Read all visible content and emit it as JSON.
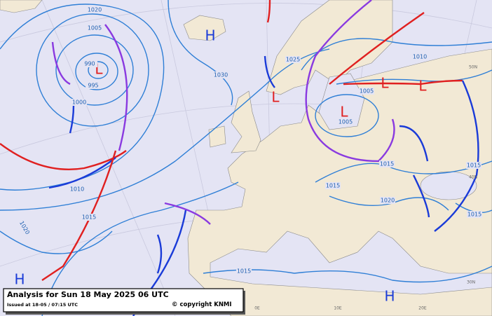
{
  "caption": {
    "title": "Analysis for Sun 18 May 2025 06 UTC",
    "issued": "Issued at 18-05 / 07:15 UTC",
    "copyright": "© copyright KNMI"
  },
  "pressure_centers": [
    {
      "label": "H",
      "kind": "high"
    },
    {
      "label": "L",
      "kind": "low"
    },
    {
      "label": "L",
      "kind": "low"
    },
    {
      "label": "L",
      "kind": "low"
    },
    {
      "label": "L",
      "kind": "low"
    },
    {
      "label": "L",
      "kind": "low"
    },
    {
      "label": "H",
      "kind": "high"
    },
    {
      "label": "H",
      "kind": "high"
    }
  ],
  "isobar_labels": [
    1020,
    1005,
    990,
    995,
    1000,
    1030,
    1025,
    1010,
    1005,
    1005,
    1015,
    1015,
    1020,
    1015,
    1015,
    1010,
    1015,
    1020,
    1015
  ],
  "graticule_labels": [
    "50N",
    "40N",
    "30N",
    "0E",
    "10E",
    "20E"
  ]
}
